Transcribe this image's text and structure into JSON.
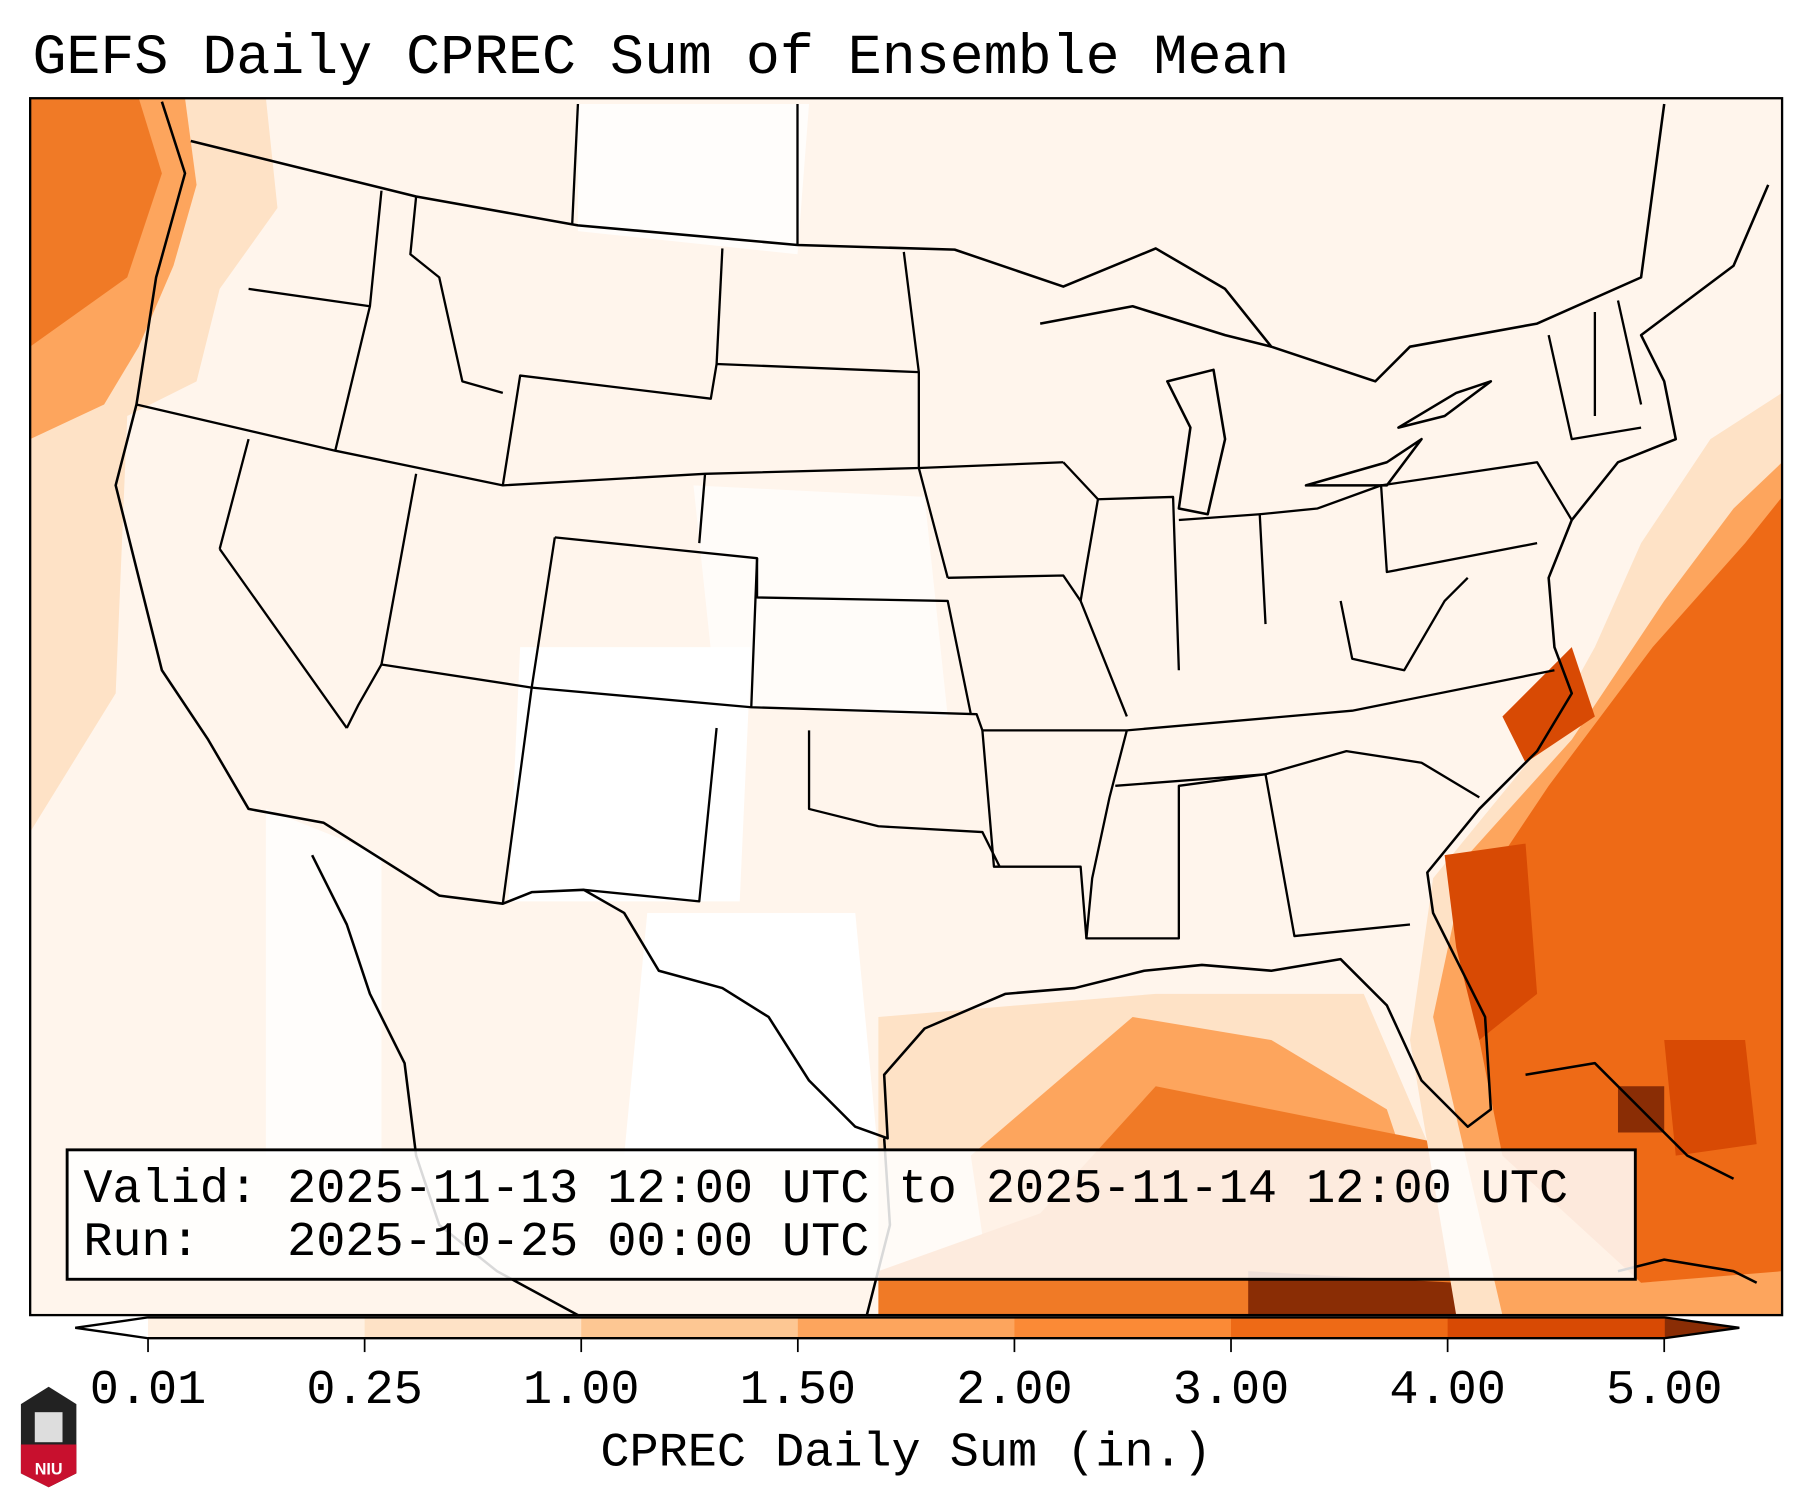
{
  "title": "GEFS Daily CPREC Sum of Ensemble Mean",
  "info_box": {
    "valid_line": "Valid: 2025-11-13 12:00 UTC to 2025-11-14 12:00 UTC",
    "run_line": "Run:   2025-10-25 00:00 UTC"
  },
  "colorbar": {
    "label": "CPREC Daily Sum (in.)",
    "ticks": [
      "0.01",
      "0.25",
      "1.00",
      "1.50",
      "2.00",
      "3.00",
      "4.00",
      "5.00"
    ],
    "colors": [
      "#fff1e3",
      "#fee2c6",
      "#fdc793",
      "#fda55d",
      "#fb8a36",
      "#ee6a16",
      "#d84a04"
    ],
    "under_color": "#ffffff",
    "over_color": "#8a2d05"
  },
  "logo": {
    "text": "NIU"
  }
}
